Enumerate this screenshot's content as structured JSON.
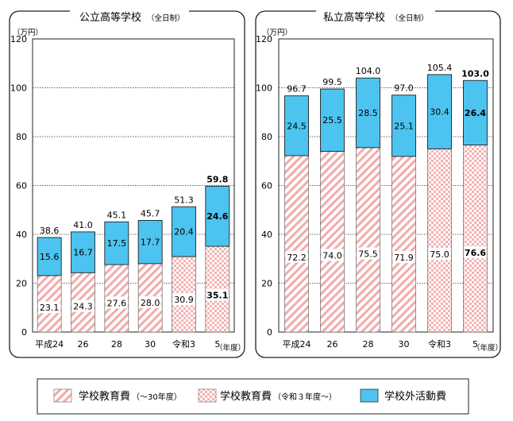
{
  "chart_data": [
    {
      "type": "bar",
      "stacked": true,
      "title": "公立高等学校",
      "title_sub": "（全日制）",
      "unit": "（万円）",
      "year_unit": "（年度）",
      "categories": [
        "平成24",
        "26",
        "28",
        "30",
        "令和3",
        "5"
      ],
      "ylim": [
        0,
        120
      ],
      "yticks": [
        "0",
        "20",
        "40",
        "60",
        "80",
        "100",
        "120"
      ],
      "grid": true,
      "series": [
        {
          "name": "学校教育費",
          "values": [
            23.1,
            24.3,
            27.6,
            28.0,
            30.9,
            35.1
          ],
          "labels": [
            "23.1",
            "24.3",
            "27.6",
            "28.0",
            "30.9",
            "35.1"
          ]
        },
        {
          "name": "学校外活動費",
          "values": [
            15.6,
            16.7,
            17.5,
            17.7,
            20.4,
            24.6
          ],
          "labels": [
            "15.6",
            "16.7",
            "17.5",
            "17.7",
            "20.4",
            "24.6"
          ]
        }
      ],
      "totals": [
        38.6,
        41.0,
        45.1,
        45.7,
        51.3,
        59.8
      ],
      "total_labels": [
        "38.6",
        "41.0",
        "45.1",
        "45.7",
        "51.3",
        "59.8"
      ],
      "highlight_index": 5
    },
    {
      "type": "bar",
      "stacked": true,
      "title": "私立高等学校",
      "title_sub": "（全日制）",
      "unit": "（万円）",
      "year_unit": "（年度）",
      "categories": [
        "平成24",
        "26",
        "28",
        "30",
        "令和3",
        "5"
      ],
      "ylim": [
        0,
        120
      ],
      "yticks": [
        "0",
        "20",
        "40",
        "60",
        "80",
        "100",
        "120"
      ],
      "grid": true,
      "series": [
        {
          "name": "学校教育費",
          "values": [
            72.2,
            74.0,
            75.5,
            71.9,
            75.0,
            76.6
          ],
          "labels": [
            "72.2",
            "74.0",
            "75.5",
            "71.9",
            "75.0",
            "76.6"
          ]
        },
        {
          "name": "学校外活動費",
          "values": [
            24.5,
            25.5,
            28.5,
            25.1,
            30.4,
            26.4
          ],
          "labels": [
            "24.5",
            "25.5",
            "28.5",
            "25.1",
            "30.4",
            "26.4"
          ]
        }
      ],
      "totals": [
        96.7,
        99.5,
        104.0,
        97.0,
        105.4,
        103.0
      ],
      "total_labels": [
        "96.7",
        "99.5",
        "104.0",
        "97.0",
        "105.4",
        "103.0"
      ],
      "highlight_index": 5
    }
  ],
  "legend": {
    "items": [
      {
        "label": "学校教育費",
        "sub": "（～30年度）",
        "pattern": "stripe"
      },
      {
        "label": "学校教育費",
        "sub": "（令和３年度～）",
        "pattern": "check"
      },
      {
        "label": "学校外活動費",
        "sub": "",
        "pattern": "solid"
      }
    ]
  },
  "colors": {
    "outside": "#4dc3ef",
    "edu_pattern": "#f2a8a8",
    "grid": "#333333",
    "axis": "#222222"
  }
}
